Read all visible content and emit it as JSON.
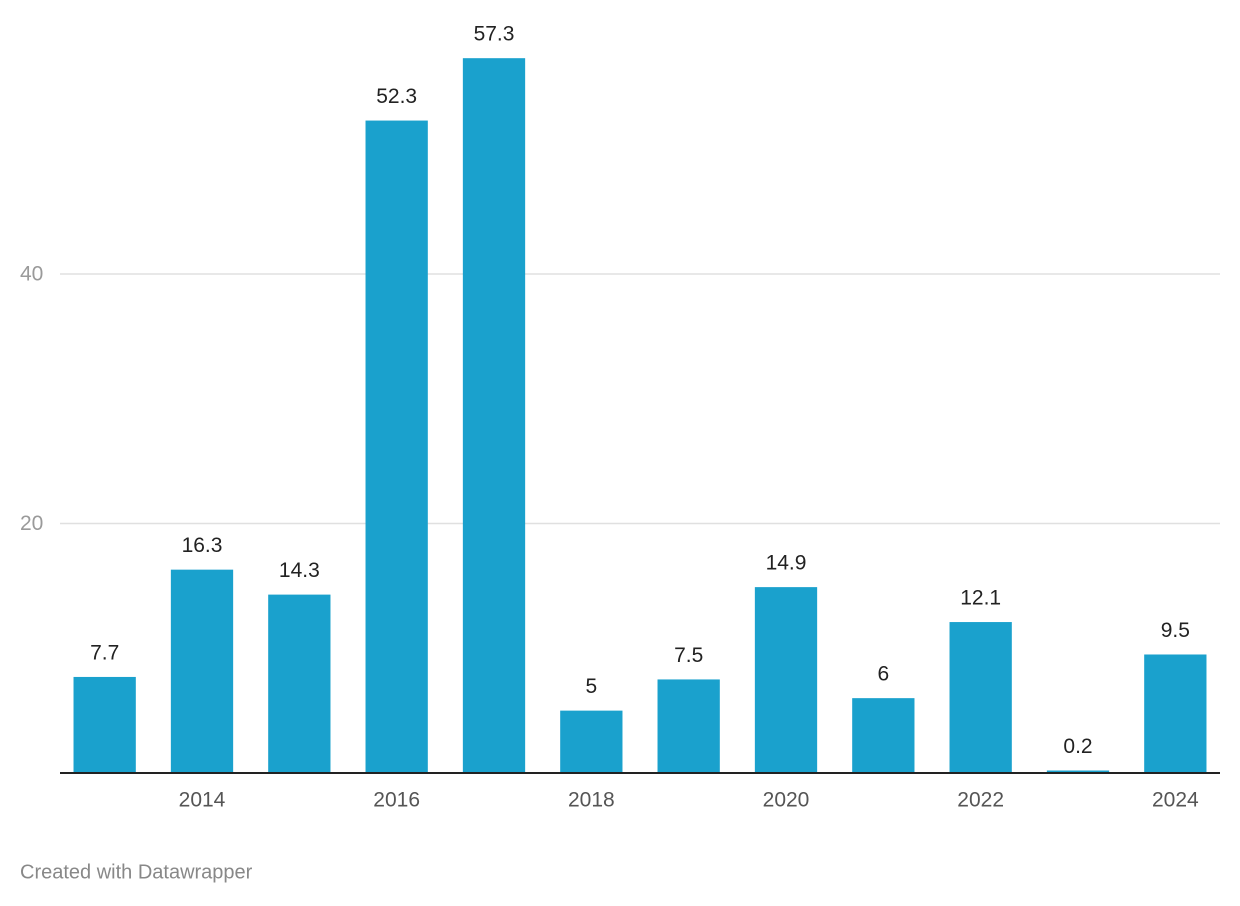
{
  "chart_data": {
    "type": "bar",
    "categories": [
      null,
      "2014",
      null,
      "2016",
      null,
      "2018",
      null,
      "2020",
      null,
      "2022",
      null,
      "2024"
    ],
    "values": [
      7.7,
      16.3,
      14.3,
      52.3,
      57.3,
      5,
      7.5,
      14.9,
      6,
      12.1,
      0.2,
      9.5
    ],
    "color": "#1aa1cd",
    "ylim": [
      0,
      60
    ],
    "yticks": [
      20,
      40
    ],
    "grid": true,
    "footer": "Created with Datawrapper"
  }
}
